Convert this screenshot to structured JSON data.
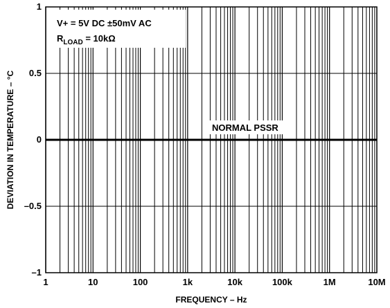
{
  "chart_data": {
    "type": "line",
    "title": "",
    "xlabel": "FREQUENCY – Hz",
    "ylabel": "DEVIATION IN TEMPERATURE – °C",
    "x_scale": "log",
    "xlim": [
      1,
      10000000
    ],
    "ylim": [
      -1,
      1
    ],
    "grid": true,
    "x_ticks": [
      {
        "value": 1,
        "label": "1"
      },
      {
        "value": 10,
        "label": "10"
      },
      {
        "value": 100,
        "label": "100"
      },
      {
        "value": 1000,
        "label": "1k"
      },
      {
        "value": 10000,
        "label": "10k"
      },
      {
        "value": 100000,
        "label": "100k"
      },
      {
        "value": 1000000,
        "label": "1M"
      },
      {
        "value": 10000000,
        "label": "10M"
      }
    ],
    "y_ticks": [
      {
        "value": 1,
        "label": "1"
      },
      {
        "value": 0.5,
        "label": "0.5"
      },
      {
        "value": 0,
        "label": "0"
      },
      {
        "value": -0.5,
        "label": "–0.5"
      },
      {
        "value": -1,
        "label": "–1"
      }
    ],
    "series": [
      {
        "name": "NORMAL PSSR",
        "color": "#000000",
        "x": [
          1,
          10000000
        ],
        "y": [
          0,
          0
        ]
      }
    ],
    "conditions": {
      "line1": "V+ = 5V DC ±50mV AC",
      "line2_prefix": "R",
      "line2_sub": "LOAD",
      "line2_suffix": " = 10kΩ"
    }
  }
}
